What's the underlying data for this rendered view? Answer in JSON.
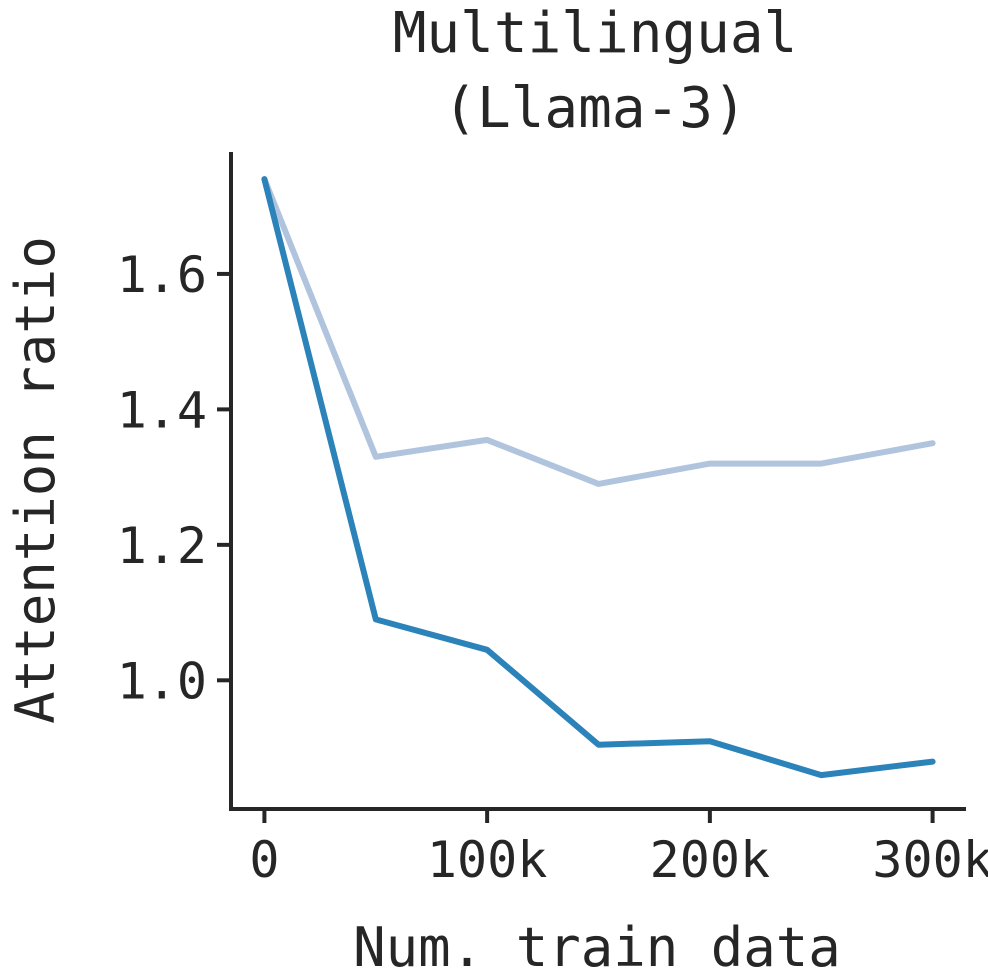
{
  "chart_data": {
    "type": "line",
    "title": [
      "Multilingual",
      "(Llama-3)"
    ],
    "xlabel": "Num. train data",
    "ylabel": "Attention ratio",
    "xlim": [
      -15000,
      315000
    ],
    "ylim": [
      0.81,
      1.78
    ],
    "x": [
      0,
      50000,
      100000,
      150000,
      200000,
      250000,
      300000
    ],
    "xticks": [
      0,
      100000,
      200000,
      300000
    ],
    "xtick_labels": [
      "0",
      "100k",
      "200k",
      "300k"
    ],
    "yticks": [
      1.0,
      1.2,
      1.4,
      1.6
    ],
    "ytick_labels": [
      "1.0",
      "1.2",
      "1.4",
      "1.6"
    ],
    "grid": false,
    "series": [
      {
        "color": "#b0c4de",
        "values": [
          1.74,
          1.33,
          1.355,
          1.29,
          1.32,
          1.32,
          1.35
        ]
      },
      {
        "color": "#2b83ba",
        "values": [
          1.74,
          1.09,
          1.045,
          0.905,
          0.91,
          0.86,
          0.88
        ]
      }
    ]
  }
}
